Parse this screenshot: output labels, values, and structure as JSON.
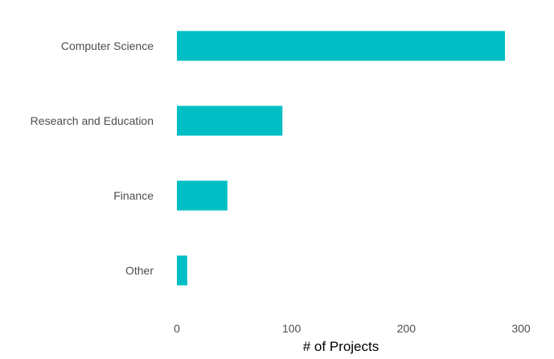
{
  "chart_data": {
    "type": "bar",
    "orientation": "horizontal",
    "categories": [
      "Computer Science",
      "Research and Education",
      "Finance",
      "Other"
    ],
    "values": [
      286,
      92,
      44,
      9
    ],
    "xlabel": "# of Projects",
    "ylabel": "",
    "xlim": [
      0,
      300
    ],
    "xticks": [
      0,
      100,
      200,
      300
    ],
    "grid": false,
    "bar_color": "#00BFC4"
  }
}
